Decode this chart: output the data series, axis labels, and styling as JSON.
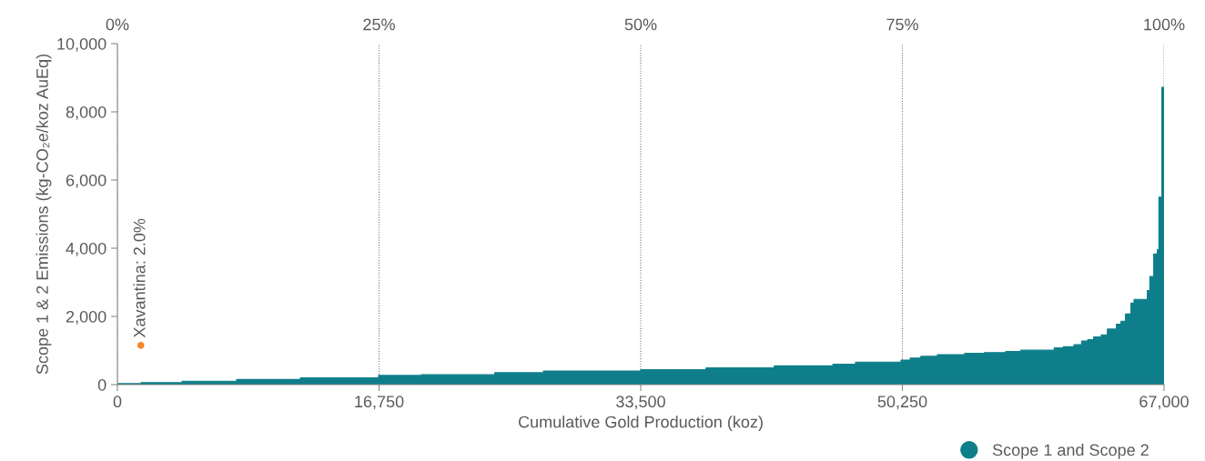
{
  "chart_data": {
    "type": "area",
    "xlabel": "Cumulative Gold Production (koz)",
    "ylabel": "Scope 1 & 2 Emissions (kg-CO₂e/koz AuEq)",
    "xlim": [
      0,
      67000
    ],
    "ylim": [
      0,
      10000
    ],
    "xticks": [
      0,
      {
        "value": 16750,
        "label": "16,750"
      },
      {
        "value": 33500,
        "label": "33,500"
      },
      {
        "value": 50250,
        "label": "50,250"
      },
      {
        "value": 67000,
        "label": "67,000"
      }
    ],
    "yticks": [
      0,
      {
        "value": 2000,
        "label": "2,000"
      },
      {
        "value": 4000,
        "label": "4,000"
      },
      {
        "value": 6000,
        "label": "6,000"
      },
      {
        "value": 8000,
        "label": "8,000"
      },
      {
        "value": 10000,
        "label": "10,000"
      }
    ],
    "x2lim": [
      0,
      100
    ],
    "x2ticks": [
      {
        "value": 0,
        "label": "0%"
      },
      {
        "value": 25,
        "label": "25%"
      },
      {
        "value": 50,
        "label": "50%"
      },
      {
        "value": 75,
        "label": "75%"
      },
      {
        "value": 100,
        "label": "100%"
      }
    ],
    "grid": "x",
    "legend": "bottom right",
    "series": [
      {
        "name": "Scope 1 and Scope 2",
        "color": "#0e7f8a",
        "x": [
          0,
          1520,
          1520,
          4140,
          4140,
          7630,
          7630,
          11710,
          11710,
          16720,
          16720,
          19460,
          19460,
          24150,
          24150,
          27270,
          27270,
          33500,
          33500,
          37680,
          37680,
          42050,
          42050,
          45800,
          45800,
          47250,
          47250,
          50160,
          50160,
          50750,
          50750,
          51430,
          51430,
          52490,
          52490,
          54240,
          54240,
          55500,
          55500,
          56860,
          56860,
          57830,
          57830,
          59970,
          59970,
          60550,
          60550,
          61230,
          61230,
          61720,
          61720,
          62110,
          62110,
          62490,
          62490,
          62980,
          62980,
          63370,
          63370,
          63950,
          63950,
          64240,
          64240,
          64530,
          64530,
          64880,
          64880,
          65080,
          65080,
          65930,
          65930,
          66090,
          66090,
          66340,
          66340,
          66570,
          66570,
          66670,
          66670,
          66860,
          66860,
          67000
        ],
        "values": [
          30,
          30,
          60,
          60,
          100,
          100,
          150,
          150,
          200,
          200,
          270,
          270,
          290,
          290,
          350,
          350,
          400,
          400,
          440,
          440,
          490,
          490,
          550,
          550,
          600,
          600,
          660,
          660,
          720,
          720,
          780,
          780,
          830,
          830,
          880,
          880,
          920,
          920,
          940,
          940,
          970,
          970,
          1010,
          1010,
          1080,
          1080,
          1110,
          1110,
          1170,
          1170,
          1280,
          1280,
          1320,
          1320,
          1400,
          1400,
          1460,
          1460,
          1630,
          1630,
          1770,
          1770,
          1860,
          1860,
          2070,
          2070,
          2390,
          2390,
          2500,
          2500,
          2760,
          2760,
          3170,
          3170,
          3830,
          3830,
          3960,
          3960,
          5500,
          5500,
          8720,
          8720
        ]
      },
      {
        "type": "scatter",
        "color": "#f5862a",
        "x": [
          1500
        ],
        "values": [
          1150
        ]
      }
    ],
    "annotations": [
      {
        "text": "Xavantina: 2.0%",
        "x": 1500,
        "y": 1150
      }
    ]
  }
}
